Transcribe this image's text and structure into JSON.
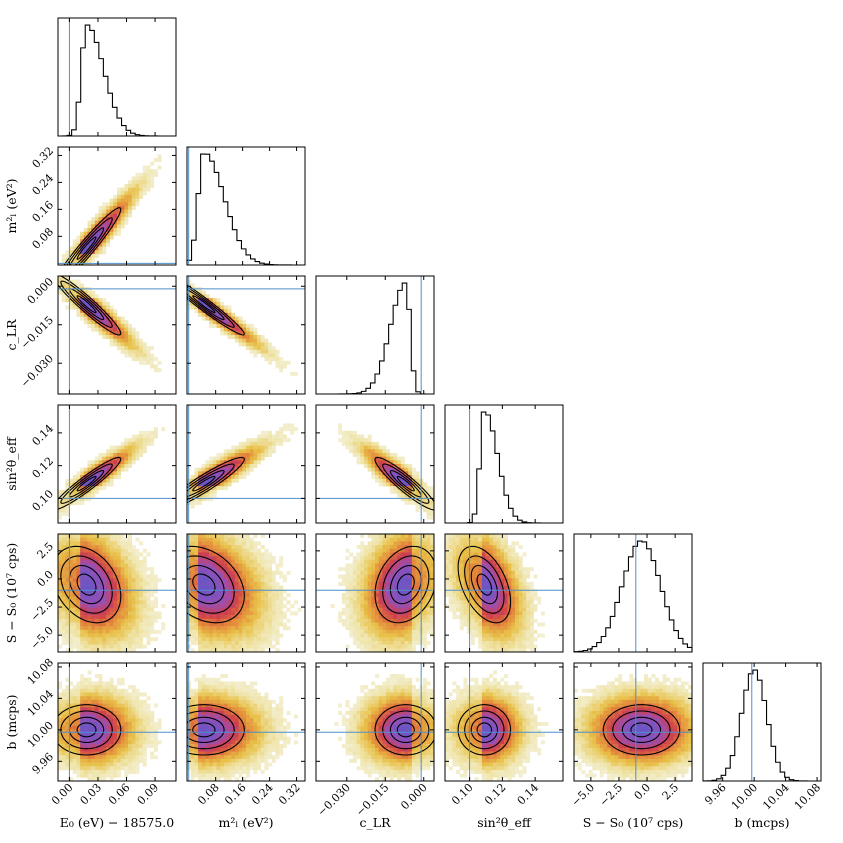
{
  "chart_data": {
    "type": "corner",
    "parameters": [
      {
        "key": "E0",
        "label": "E₀ (eV) − 18575.0",
        "range": [
          -0.012,
          0.112
        ],
        "truth": 0.0,
        "mean": 0.018,
        "sd": 0.018,
        "skew": 0.9,
        "ticks": [
          {
            "v": 0.0,
            "t": "0.00"
          },
          {
            "v": 0.03,
            "t": "0.03"
          },
          {
            "v": 0.06,
            "t": "0.06"
          },
          {
            "v": 0.09,
            "t": "0.09"
          }
        ]
      },
      {
        "key": "m2",
        "label": "m²ₗ (eV²)",
        "range": [
          -0.005,
          0.345
        ],
        "truth": 0.0,
        "mean": 0.045,
        "sd": 0.06,
        "skew": 1.0,
        "ticks": [
          {
            "v": 0.08,
            "t": "0.08"
          },
          {
            "v": 0.16,
            "t": "0.16"
          },
          {
            "v": 0.24,
            "t": "0.24"
          },
          {
            "v": 0.32,
            "t": "0.32"
          }
        ]
      },
      {
        "key": "cLR",
        "label": "c_LR",
        "range": [
          -0.042,
          0.004
        ],
        "truth": -0.001,
        "mean": -0.007,
        "sd": 0.006,
        "skew": -1.0,
        "ticks": [
          {
            "v": -0.03,
            "t": "−0.030"
          },
          {
            "v": -0.015,
            "t": "−0.015"
          },
          {
            "v": 0.0,
            "t": "0.000"
          }
        ]
      },
      {
        "key": "sin2",
        "label": "sin²θ_eff",
        "range": [
          0.085,
          0.157
        ],
        "truth": 0.1,
        "mean": 0.109,
        "sd": 0.008,
        "skew": 0.8,
        "ticks": [
          {
            "v": 0.1,
            "t": "0.10"
          },
          {
            "v": 0.12,
            "t": "0.12"
          },
          {
            "v": 0.14,
            "t": "0.14"
          }
        ]
      },
      {
        "key": "S",
        "label": "S − S₀ (10⁷ cps)",
        "range": [
          -6.5,
          4.0
        ],
        "truth": -1.0,
        "mean": -0.5,
        "sd": 1.7,
        "skew": 0.0,
        "ticks": [
          {
            "v": -5.0,
            "t": "−5.0"
          },
          {
            "v": -2.5,
            "t": "−2.5"
          },
          {
            "v": 0.0,
            "t": "0.0"
          },
          {
            "v": 2.5,
            "t": "2.5"
          }
        ]
      },
      {
        "key": "b",
        "label": "b (mcps)",
        "range": [
          9.935,
          10.085
        ],
        "truth": 9.997,
        "mean": 10.0,
        "sd": 0.016,
        "skew": 0.0,
        "ticks": [
          {
            "v": 9.96,
            "t": "9.96"
          },
          {
            "v": 10.0,
            "t": "10.00"
          },
          {
            "v": 10.04,
            "t": "10.04"
          },
          {
            "v": 10.08,
            "t": "10.08"
          }
        ]
      }
    ],
    "correlations": [
      [
        1.0,
        0.96,
        -0.95,
        0.94,
        -0.3,
        0.0
      ],
      [
        0.96,
        1.0,
        -0.97,
        0.93,
        -0.3,
        0.0
      ],
      [
        -0.95,
        -0.97,
        1.0,
        -0.92,
        0.25,
        0.0
      ],
      [
        0.94,
        0.93,
        -0.92,
        1.0,
        -0.45,
        0.0
      ],
      [
        -0.3,
        -0.3,
        0.25,
        -0.45,
        1.0,
        0.0
      ],
      [
        0.0,
        0.0,
        0.0,
        0.0,
        0.0,
        1.0
      ]
    ],
    "density_colormap": [
      "#f6f6ee",
      "#efe4a8",
      "#e8c048",
      "#e3863a",
      "#cf3e4a",
      "#9b4fb3",
      "#6b55c4"
    ],
    "contour_levels": [
      "0.5σ",
      "1σ",
      "1.5σ",
      "2σ"
    ],
    "truth_line_color": "#4f8fc9"
  }
}
